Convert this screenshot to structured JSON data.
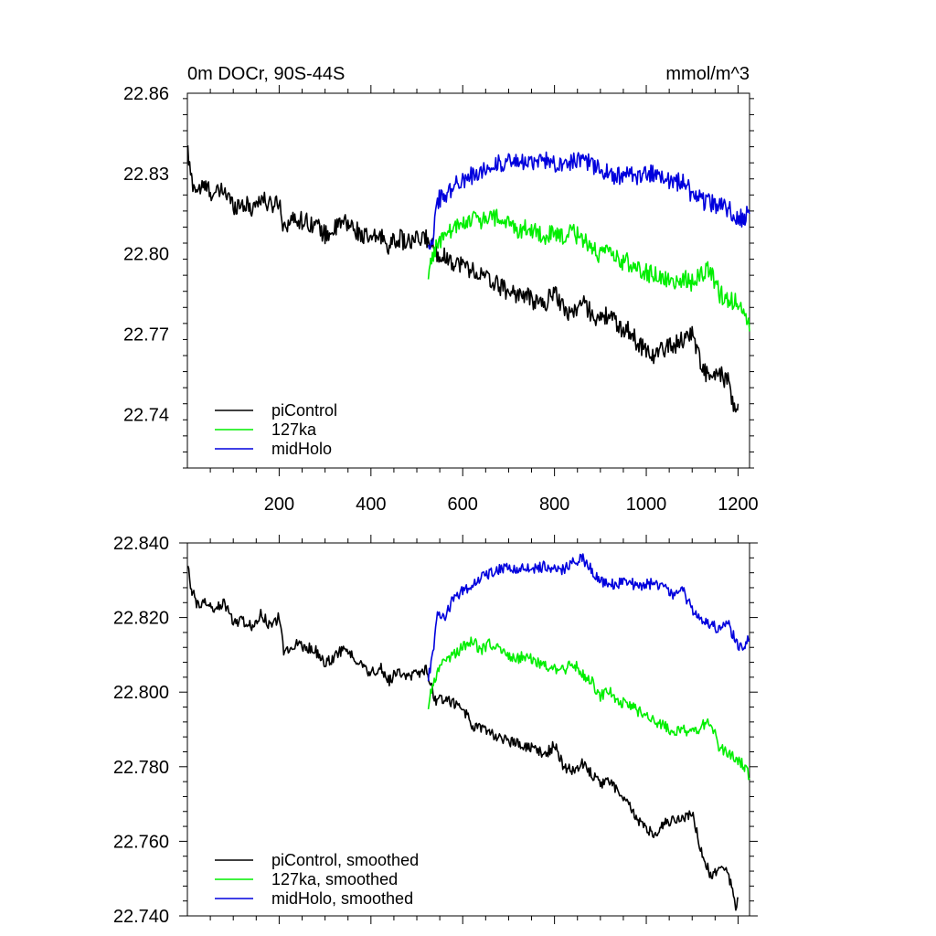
{
  "figure": {
    "title_left": "0m DOCr, 90S-44S",
    "title_right": "mmol/m^3"
  },
  "colors": {
    "piControl": "#000000",
    "127ka": "#00ee00",
    "midHolo": "#0000dd"
  },
  "chart_data": [
    {
      "type": "line",
      "panel": "top",
      "xlim": [
        0,
        1225
      ],
      "ylim": [
        22.72,
        22.86
      ],
      "xticks": [
        200,
        400,
        600,
        800,
        1000,
        1200
      ],
      "xtick_labels": [
        "200",
        "400",
        "600",
        "800",
        "1000",
        "1200"
      ],
      "yticks": [
        22.74,
        22.77,
        22.8,
        22.83,
        22.86
      ],
      "ytick_labels": [
        "22.74",
        "22.77",
        "22.80",
        "22.83",
        "22.86"
      ],
      "legend_position": "bottom-left",
      "legend": [
        "piControl",
        "127ka",
        "midHolo"
      ],
      "series": [
        {
          "name": "piControl",
          "color": "#000000",
          "noise": 0.0035,
          "x": [
            1,
            5,
            10,
            20,
            40,
            60,
            80,
            100,
            120,
            140,
            160,
            180,
            200,
            210,
            220,
            240,
            260,
            280,
            300,
            320,
            340,
            360,
            380,
            400,
            420,
            440,
            460,
            480,
            500,
            520,
            540,
            560,
            580,
            600,
            620,
            640,
            660,
            680,
            700,
            720,
            740,
            760,
            780,
            800,
            820,
            840,
            860,
            880,
            900,
            920,
            940,
            960,
            980,
            1000,
            1020,
            1040,
            1060,
            1080,
            1100,
            1120,
            1140,
            1160,
            1180,
            1195,
            1200
          ],
          "y": [
            22.838,
            22.832,
            22.827,
            22.824,
            22.825,
            22.822,
            22.824,
            22.818,
            22.819,
            22.817,
            22.821,
            22.818,
            22.82,
            22.81,
            22.812,
            22.813,
            22.812,
            22.811,
            22.807,
            22.809,
            22.812,
            22.81,
            22.807,
            22.805,
            22.807,
            22.803,
            22.806,
            22.804,
            22.805,
            22.806,
            22.801,
            22.799,
            22.797,
            22.796,
            22.794,
            22.792,
            22.79,
            22.788,
            22.786,
            22.785,
            22.784,
            22.782,
            22.781,
            22.787,
            22.779,
            22.778,
            22.782,
            22.778,
            22.775,
            22.778,
            22.772,
            22.772,
            22.767,
            22.764,
            22.762,
            22.765,
            22.766,
            22.768,
            22.771,
            22.758,
            22.753,
            22.755,
            22.752,
            22.738,
            22.744
          ]
        },
        {
          "name": "127ka",
          "color": "#00ee00",
          "noise": 0.0035,
          "x": [
            525,
            530,
            540,
            560,
            580,
            600,
            620,
            640,
            660,
            680,
            700,
            720,
            740,
            760,
            780,
            800,
            820,
            840,
            860,
            880,
            900,
            920,
            940,
            960,
            980,
            1000,
            1020,
            1040,
            1060,
            1080,
            1100,
            1120,
            1140,
            1160,
            1180,
            1200,
            1215,
            1225
          ],
          "y": [
            22.789,
            22.798,
            22.802,
            22.807,
            22.809,
            22.811,
            22.814,
            22.812,
            22.814,
            22.813,
            22.811,
            22.809,
            22.81,
            22.808,
            22.807,
            22.807,
            22.806,
            22.808,
            22.806,
            22.803,
            22.799,
            22.801,
            22.797,
            22.797,
            22.795,
            22.793,
            22.792,
            22.791,
            22.789,
            22.791,
            22.789,
            22.793,
            22.794,
            22.785,
            22.783,
            22.782,
            22.779,
            22.771
          ]
        },
        {
          "name": "midHolo",
          "color": "#0000dd",
          "noise": 0.0035,
          "x": [
            525,
            535,
            545,
            560,
            580,
            600,
            620,
            640,
            660,
            680,
            700,
            720,
            740,
            760,
            780,
            800,
            820,
            840,
            860,
            880,
            900,
            920,
            940,
            960,
            980,
            1000,
            1020,
            1040,
            1060,
            1080,
            1100,
            1120,
            1140,
            1160,
            1180,
            1200,
            1215,
            1225
          ],
          "y": [
            22.803,
            22.807,
            22.82,
            22.822,
            22.825,
            22.828,
            22.829,
            22.831,
            22.833,
            22.834,
            22.834,
            22.834,
            22.834,
            22.834,
            22.835,
            22.834,
            22.834,
            22.835,
            22.836,
            22.833,
            22.831,
            22.83,
            22.829,
            22.83,
            22.828,
            22.83,
            22.83,
            22.829,
            22.826,
            22.828,
            22.822,
            22.82,
            22.819,
            22.818,
            22.817,
            22.813,
            22.814,
            22.815
          ]
        }
      ]
    },
    {
      "type": "line",
      "panel": "bottom",
      "xlim": [
        0,
        1225
      ],
      "ylim": [
        22.74,
        22.84
      ],
      "xticks": [
        200,
        400,
        600,
        800,
        1000,
        1200
      ],
      "yticks": [
        22.74,
        22.76,
        22.78,
        22.8,
        22.82,
        22.84
      ],
      "ytick_labels": [
        "22.740",
        "22.760",
        "22.780",
        "22.800",
        "22.820",
        "22.840"
      ],
      "legend_position": "bottom-left",
      "legend": [
        "piControl, smoothed",
        "127ka, smoothed",
        "midHolo, smoothed"
      ],
      "series": [
        {
          "name": "piControl, smoothed",
          "color": "#000000",
          "noise": 0.0015,
          "x": [
            1,
            5,
            10,
            20,
            40,
            60,
            80,
            100,
            120,
            140,
            160,
            180,
            200,
            210,
            220,
            240,
            260,
            280,
            300,
            320,
            340,
            360,
            380,
            400,
            420,
            440,
            460,
            480,
            500,
            520,
            540,
            560,
            580,
            600,
            620,
            640,
            660,
            680,
            700,
            720,
            740,
            760,
            780,
            800,
            820,
            840,
            860,
            880,
            900,
            920,
            940,
            960,
            980,
            1000,
            1020,
            1040,
            1060,
            1080,
            1100,
            1120,
            1140,
            1160,
            1180,
            1195,
            1200
          ],
          "y": [
            22.834,
            22.83,
            22.827,
            22.824,
            22.824,
            22.822,
            22.824,
            22.819,
            22.819,
            22.818,
            22.821,
            22.818,
            22.82,
            22.811,
            22.812,
            22.813,
            22.812,
            22.811,
            22.808,
            22.809,
            22.812,
            22.81,
            22.807,
            22.805,
            22.807,
            22.803,
            22.806,
            22.804,
            22.805,
            22.806,
            22.798,
            22.798,
            22.797,
            22.796,
            22.791,
            22.79,
            22.789,
            22.788,
            22.787,
            22.786,
            22.785,
            22.785,
            22.783,
            22.786,
            22.78,
            22.779,
            22.781,
            22.778,
            22.775,
            22.776,
            22.773,
            22.771,
            22.766,
            22.763,
            22.762,
            22.765,
            22.766,
            22.766,
            22.768,
            22.757,
            22.751,
            22.753,
            22.751,
            22.742,
            22.745
          ]
        },
        {
          "name": "127ka, smoothed",
          "color": "#00ee00",
          "noise": 0.0015,
          "x": [
            525,
            530,
            540,
            560,
            580,
            600,
            620,
            640,
            660,
            680,
            700,
            720,
            740,
            760,
            780,
            800,
            820,
            840,
            860,
            880,
            900,
            920,
            940,
            960,
            980,
            1000,
            1020,
            1040,
            1060,
            1080,
            1100,
            1120,
            1140,
            1160,
            1180,
            1200,
            1215,
            1225
          ],
          "y": [
            22.796,
            22.8,
            22.804,
            22.808,
            22.81,
            22.812,
            22.814,
            22.811,
            22.813,
            22.812,
            22.81,
            22.809,
            22.81,
            22.808,
            22.807,
            22.806,
            22.806,
            22.808,
            22.805,
            22.803,
            22.799,
            22.8,
            22.797,
            22.797,
            22.795,
            22.794,
            22.792,
            22.791,
            22.789,
            22.79,
            22.789,
            22.791,
            22.792,
            22.785,
            22.783,
            22.782,
            22.78,
            22.777
          ]
        },
        {
          "name": "midHolo, smoothed",
          "color": "#0000dd",
          "noise": 0.0015,
          "x": [
            525,
            535,
            545,
            560,
            580,
            600,
            620,
            640,
            660,
            680,
            700,
            720,
            740,
            760,
            780,
            800,
            820,
            840,
            860,
            880,
            900,
            920,
            940,
            960,
            980,
            1000,
            1020,
            1040,
            1060,
            1080,
            1100,
            1120,
            1140,
            1160,
            1180,
            1200,
            1215,
            1225
          ],
          "y": [
            22.804,
            22.81,
            22.822,
            22.82,
            22.825,
            22.827,
            22.829,
            22.831,
            22.832,
            22.833,
            22.833,
            22.833,
            22.833,
            22.833,
            22.834,
            22.833,
            22.833,
            22.835,
            22.836,
            22.833,
            22.83,
            22.829,
            22.829,
            22.83,
            22.828,
            22.829,
            22.829,
            22.828,
            22.826,
            22.827,
            22.822,
            22.82,
            22.818,
            22.817,
            22.818,
            22.812,
            22.813,
            22.814
          ]
        }
      ]
    }
  ]
}
